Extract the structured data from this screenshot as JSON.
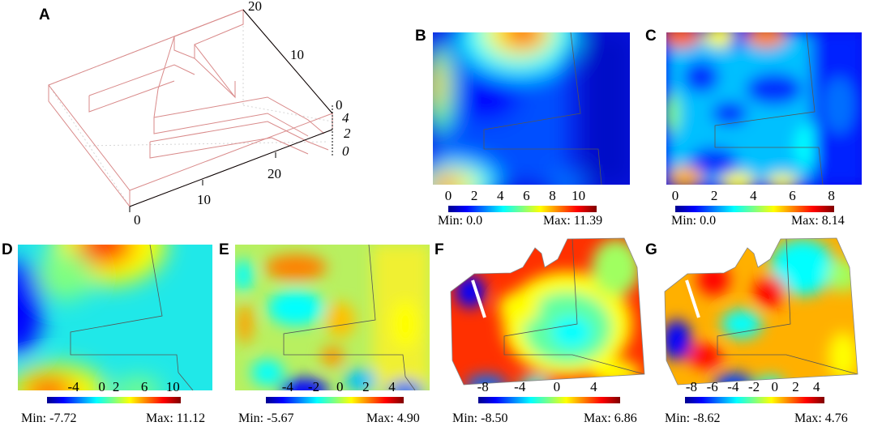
{
  "panels": {
    "A": {
      "letter": "A",
      "axis_labels": [
        "20",
        "10",
        "0",
        "4",
        "2",
        "0",
        "20",
        "10",
        "0"
      ]
    },
    "B": {
      "letter": "B",
      "ticks": [
        "0",
        "2",
        "4",
        "6",
        "8",
        "10"
      ],
      "tick_values": [
        0,
        2,
        4,
        6,
        8,
        10
      ],
      "range": [
        0,
        11.39
      ],
      "min_label": "Min: 0.0",
      "max_label": "Max: 11.39"
    },
    "C": {
      "letter": "C",
      "ticks": [
        "0",
        "2",
        "4",
        "6",
        "8"
      ],
      "tick_values": [
        0,
        2,
        4,
        6,
        8
      ],
      "range": [
        0,
        8.14
      ],
      "min_label": "Min: 0.0",
      "max_label": "Max: 8.14"
    },
    "D": {
      "letter": "D",
      "ticks": [
        "-4",
        "0",
        "2",
        "6",
        "10"
      ],
      "tick_values": [
        -4,
        0,
        2,
        6,
        10
      ],
      "range": [
        -7.72,
        11.12
      ],
      "min_label": "Min: -7.72",
      "max_label": "Max: 11.12"
    },
    "E": {
      "letter": "E",
      "ticks": [
        "-4",
        "-2",
        "0",
        "2",
        "4"
      ],
      "tick_values": [
        -4,
        -2,
        0,
        2,
        4
      ],
      "range": [
        -5.67,
        4.9
      ],
      "min_label": "Min: -5.67",
      "max_label": "Max: 4.90"
    },
    "F": {
      "letter": "F",
      "ticks": [
        "-8",
        "-4",
        "0",
        "4"
      ],
      "tick_values": [
        -8,
        -4,
        0,
        4
      ],
      "range": [
        -8.5,
        6.86
      ],
      "min_label": "Min: -8.50",
      "max_label": "Max: 6.86"
    },
    "G": {
      "letter": "G",
      "ticks": [
        "-8",
        "-6",
        "-4",
        "-2",
        "0",
        "2",
        "4"
      ],
      "tick_values": [
        -8,
        -6,
        -4,
        -2,
        0,
        2,
        4
      ],
      "range": [
        -8.62,
        4.76
      ],
      "min_label": "Min: -8.62",
      "max_label": "Max: 4.76"
    }
  },
  "colors": {
    "jet": [
      "#00008f",
      "#0000ff",
      "#0080ff",
      "#00ffff",
      "#80ff80",
      "#ffff00",
      "#ff8000",
      "#ff0000",
      "#800000"
    ],
    "wire": "#d98a8a",
    "outline": "#555555"
  }
}
